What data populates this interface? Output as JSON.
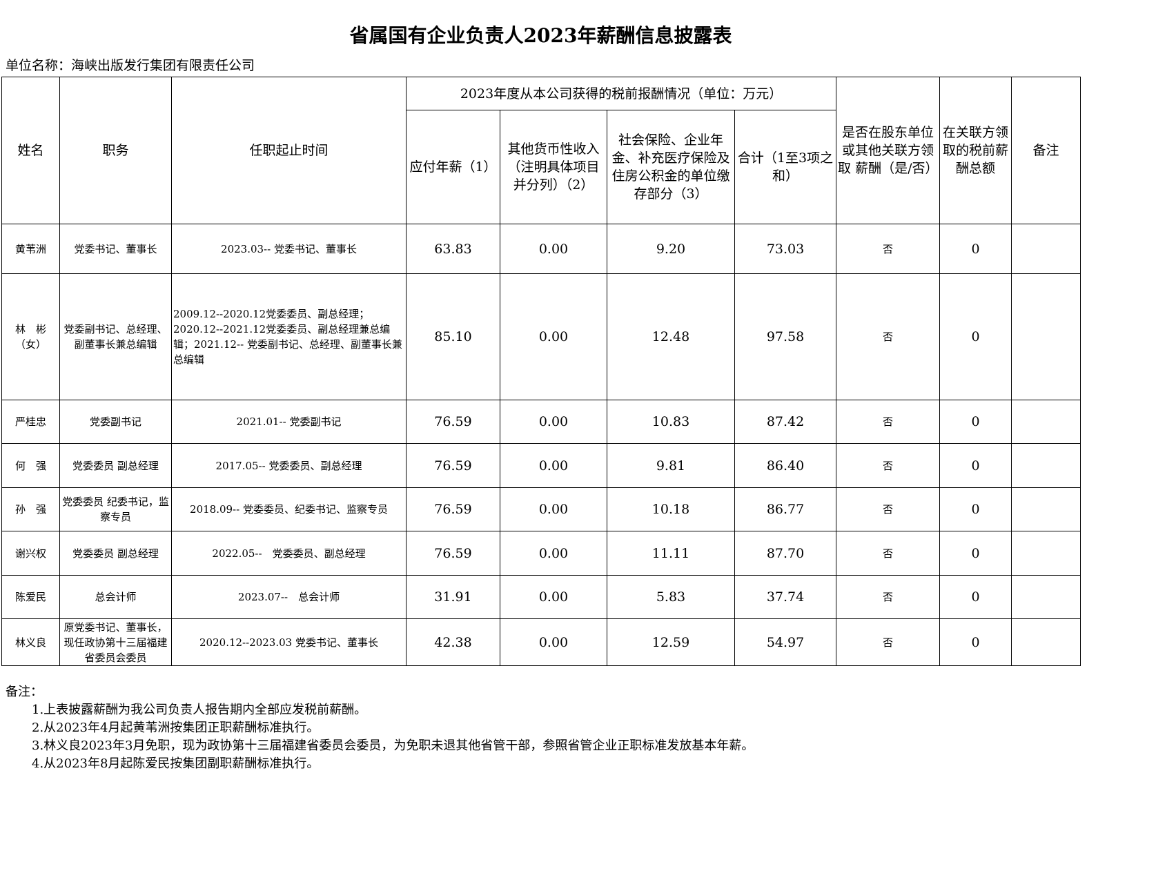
{
  "title": "省属国有企业负责人2023年薪酬信息披露表",
  "unit": "单位名称：海峡出版发行集团有限责任公司",
  "header": {
    "name": "姓名",
    "position": "职务",
    "tenure": "任职起止时间",
    "group": "2023年度从本公司获得的税前报酬情况（单位：万元）",
    "salary": "应付年薪（1）",
    "other": "其他货币性收入（注明具体项目并分列）（2）",
    "insurance": "社会保险、企业年金、补充医疗保险及住房公积金的单位缴存部分（3）",
    "total": "合计（1至3项之和）",
    "related": "是否在股东单位或其他关联方领取 薪酬（是/否）",
    "related_amount": "在关联方领取的税前薪酬总额",
    "remark": "备注"
  },
  "rows": [
    {
      "name": "黄苇洲",
      "position": "党委书记、董事长",
      "tenure": "2023.03-- 党委书记、董事长",
      "salary": "63.83",
      "other": "0.00",
      "insurance": "9.20",
      "total": "73.03",
      "related": "否",
      "related_amount": "0",
      "remark": ""
    },
    {
      "name": "林　彬（女）",
      "position": "党委副书记、总经理、副董事长兼总编辑",
      "tenure": "2009.12--2020.12党委委员、副总经理；2020.12--2021.12党委委员、副总经理兼总编辑；2021.12-- 党委副书记、总经理、副董事长兼总编辑",
      "salary": "85.10",
      "other": "0.00",
      "insurance": "12.48",
      "total": "97.58",
      "related": "否",
      "related_amount": "0",
      "remark": ""
    },
    {
      "name": "严桂忠",
      "position": "党委副书记",
      "tenure": "2021.01-- 党委副书记",
      "salary": "76.59",
      "other": "0.00",
      "insurance": "10.83",
      "total": "87.42",
      "related": "否",
      "related_amount": "0",
      "remark": ""
    },
    {
      "name": "何　强",
      "position": "党委委员 副总经理",
      "tenure": "2017.05-- 党委委员、副总经理",
      "salary": "76.59",
      "other": "0.00",
      "insurance": "9.81",
      "total": "86.40",
      "related": "否",
      "related_amount": "0",
      "remark": ""
    },
    {
      "name": "孙　强",
      "position": "党委委员 纪委书记，监察专员",
      "tenure": "2018.09-- 党委委员、纪委书记、监察专员",
      "salary": "76.59",
      "other": "0.00",
      "insurance": "10.18",
      "total": "86.77",
      "related": "否",
      "related_amount": "0",
      "remark": ""
    },
    {
      "name": "谢兴权",
      "position": "党委委员 副总经理",
      "tenure": "2022.05--　党委委员、副总经理",
      "salary": "76.59",
      "other": "0.00",
      "insurance": "11.11",
      "total": "87.70",
      "related": "否",
      "related_amount": "0",
      "remark": ""
    },
    {
      "name": "陈爱民",
      "position": "总会计师",
      "tenure": "2023.07--　总会计师",
      "salary": "31.91",
      "other": "0.00",
      "insurance": "5.83",
      "total": "37.74",
      "related": "否",
      "related_amount": "0",
      "remark": ""
    },
    {
      "name": "林义良",
      "position": "原党委书记、董事长，现任政协第十三届福建省委员会委员",
      "tenure": "2020.12--2023.03 党委书记、董事长",
      "salary": "42.38",
      "other": "0.00",
      "insurance": "12.59",
      "total": "54.97",
      "related": "否",
      "related_amount": "0",
      "remark": ""
    }
  ],
  "notes": {
    "label": "备注：",
    "items": [
      "1.上表披露薪酬为我公司负责人报告期内全部应发税前薪酬。",
      "2.从2023年4月起黄苇洲按集团正职薪酬标准执行。",
      "3.林义良2023年3月免职，现为政协第十三届福建省委员会委员，为免职未退其他省管干部，参照省管企业正职标准发放基本年薪。",
      "4.从2023年8月起陈爱民按集团副职薪酬标准执行。"
    ]
  }
}
